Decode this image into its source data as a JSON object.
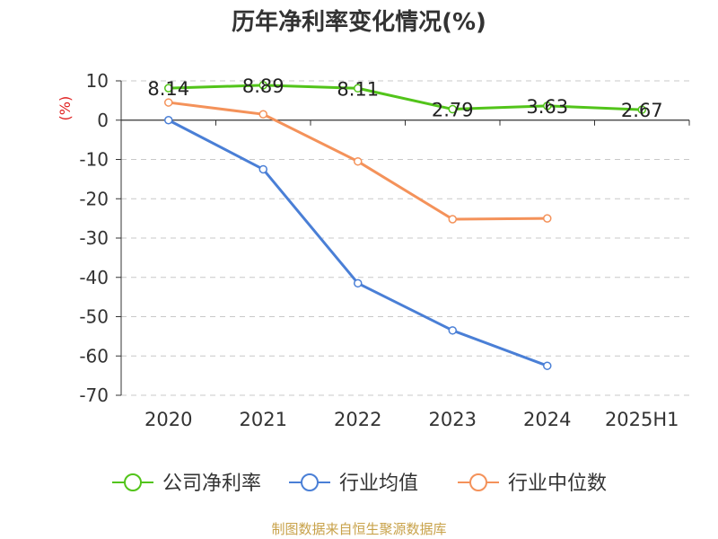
{
  "chart_data": {
    "type": "line",
    "title": "历年净利率变化情况(%)",
    "ylabel": "(%)",
    "xlabel": "",
    "categories": [
      "2020",
      "2021",
      "2022",
      "2023",
      "2024",
      "2025H1"
    ],
    "ylim": [
      -70,
      10
    ],
    "yticks": [
      10,
      0,
      -10,
      -20,
      -30,
      -40,
      -50,
      -60,
      -70
    ],
    "grid": true,
    "legend_position": "bottom",
    "series": [
      {
        "name": "公司净利率",
        "color": "#52c41a",
        "values": [
          8.14,
          8.89,
          8.11,
          2.79,
          3.63,
          2.67
        ],
        "labels": [
          "8.14",
          "8.89",
          "8.11",
          "2.79",
          "3.63",
          "2.67"
        ]
      },
      {
        "name": "行业均值",
        "color": "#4a7fd6",
        "values": [
          0.0,
          -12.5,
          -41.5,
          -53.5,
          -62.5,
          null
        ]
      },
      {
        "name": "行业中位数",
        "color": "#f4925a",
        "values": [
          4.5,
          1.5,
          -10.5,
          -25.2,
          -25.0,
          null
        ]
      }
    ]
  },
  "source_text": "制图数据来自恒生聚源数据库"
}
